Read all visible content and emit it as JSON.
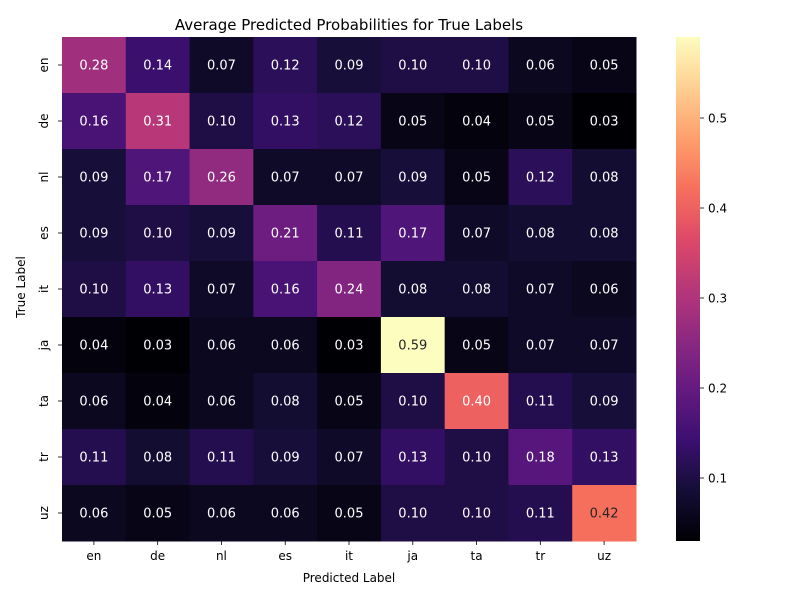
{
  "chart_data": {
    "type": "heatmap",
    "title": "Average Predicted Probabilities for True Labels",
    "xlabel": "Predicted Label",
    "ylabel": "True Label",
    "x_categories": [
      "en",
      "de",
      "nl",
      "es",
      "it",
      "ja",
      "ta",
      "tr",
      "uz"
    ],
    "y_categories": [
      "en",
      "de",
      "nl",
      "es",
      "it",
      "ja",
      "ta",
      "tr",
      "uz"
    ],
    "values": [
      [
        0.28,
        0.14,
        0.07,
        0.12,
        0.09,
        0.1,
        0.1,
        0.06,
        0.05
      ],
      [
        0.16,
        0.31,
        0.1,
        0.13,
        0.12,
        0.05,
        0.04,
        0.05,
        0.03
      ],
      [
        0.09,
        0.17,
        0.26,
        0.07,
        0.07,
        0.09,
        0.05,
        0.12,
        0.08
      ],
      [
        0.09,
        0.1,
        0.09,
        0.21,
        0.11,
        0.17,
        0.07,
        0.08,
        0.08
      ],
      [
        0.1,
        0.13,
        0.07,
        0.16,
        0.24,
        0.08,
        0.08,
        0.07,
        0.06
      ],
      [
        0.04,
        0.03,
        0.06,
        0.06,
        0.03,
        0.59,
        0.05,
        0.07,
        0.07
      ],
      [
        0.06,
        0.04,
        0.06,
        0.08,
        0.05,
        0.1,
        0.4,
        0.11,
        0.09
      ],
      [
        0.11,
        0.08,
        0.11,
        0.09,
        0.07,
        0.13,
        0.1,
        0.18,
        0.13
      ],
      [
        0.06,
        0.05,
        0.06,
        0.06,
        0.05,
        0.1,
        0.1,
        0.11,
        0.42
      ]
    ],
    "colormap": "magma",
    "color_range": [
      0.03,
      0.59
    ],
    "colorbar_ticks": [
      0.1,
      0.2,
      0.3,
      0.4,
      0.5
    ],
    "colorbar_tick_labels": [
      "0.1",
      "0.2",
      "0.3",
      "0.4",
      "0.5"
    ],
    "annotated": true,
    "value_format": "2 decimals"
  }
}
